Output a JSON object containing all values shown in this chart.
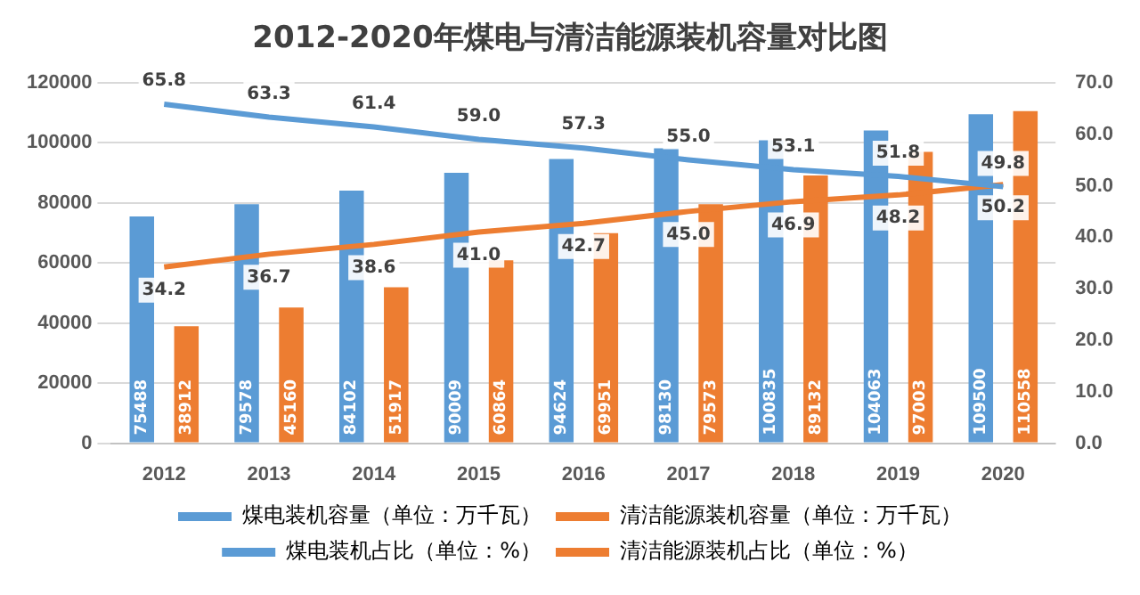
{
  "chart_data": {
    "type": "bar",
    "title": "2012-2020年煤电与清洁能源装机容量对比图",
    "categories": [
      "2012",
      "2013",
      "2014",
      "2015",
      "2016",
      "2017",
      "2018",
      "2019",
      "2020"
    ],
    "series": [
      {
        "name": "煤电装机容量（单位：万千瓦）",
        "color": "#5b9bd5",
        "values": [
          75488,
          79578,
          84102,
          90009,
          94624,
          98130,
          100835,
          104063,
          109500
        ],
        "value_labels": [
          "75488",
          "79578",
          "84102",
          "90009",
          "94624",
          "98130",
          "100835",
          "104063",
          "109500"
        ]
      },
      {
        "name": "清洁能源装机容量（单位：万千瓦）",
        "color": "#ed7d31",
        "values": [
          38912,
          45160,
          51917,
          60864,
          69951,
          79573,
          89132,
          97003,
          110558
        ],
        "value_labels": [
          "38912",
          "45160",
          "51917",
          "60864",
          "69951",
          "79573",
          "89132",
          "97003",
          "110558"
        ]
      },
      {
        "name": "煤电装机占比（单位：%）",
        "type": "line",
        "axis": "y2",
        "color": "#5b9bd5",
        "values": [
          65.8,
          63.3,
          61.4,
          59.0,
          57.3,
          55.0,
          53.1,
          51.8,
          49.8
        ],
        "value_labels": [
          "65.8",
          "63.3",
          "61.4",
          "59.0",
          "57.3",
          "55.0",
          "53.1",
          "51.8",
          "49.8"
        ]
      },
      {
        "name": "清洁能源装机占比（单位：%）",
        "type": "line",
        "axis": "y2",
        "color": "#ed7d31",
        "values": [
          34.2,
          36.7,
          38.6,
          41.0,
          42.7,
          45.0,
          46.9,
          48.2,
          50.2
        ],
        "value_labels": [
          "34.2",
          "36.7",
          "38.6",
          "41.0",
          "42.7",
          "45.0",
          "46.9",
          "48.2",
          "50.2"
        ]
      }
    ],
    "ylim": [
      0,
      120000
    ],
    "yticks": [
      0,
      20000,
      40000,
      60000,
      80000,
      100000,
      120000
    ],
    "y2lim": [
      0,
      70
    ],
    "y2ticks": [
      {
        "value": 0,
        "label": "0.0"
      },
      {
        "value": 10,
        "label": "10.0"
      },
      {
        "value": 20,
        "label": "20.0"
      },
      {
        "value": 30,
        "label": "30.0"
      },
      {
        "value": 40,
        "label": "40.0"
      },
      {
        "value": 50,
        "label": "50.0"
      },
      {
        "value": 60,
        "label": "60.0"
      },
      {
        "value": 70,
        "label": "70.0"
      }
    ],
    "grid": "y",
    "legend": "bottom",
    "marker": "none"
  }
}
